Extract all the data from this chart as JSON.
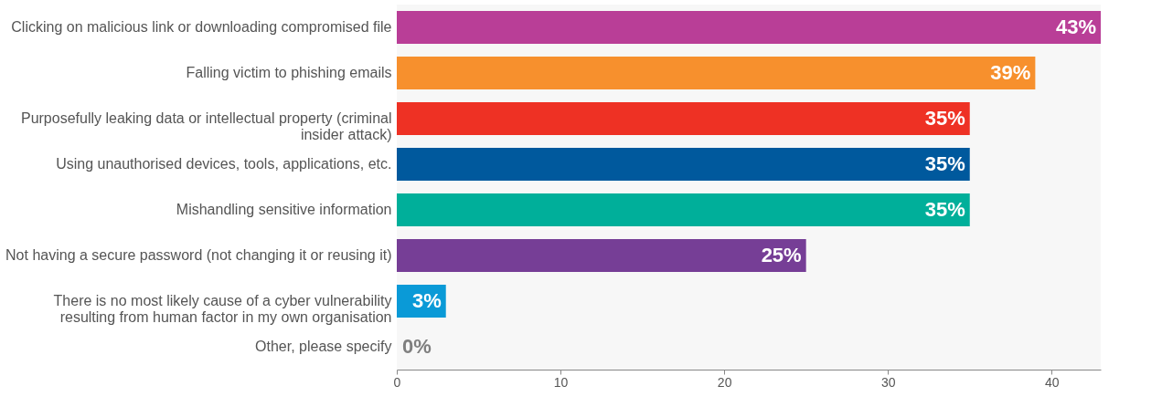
{
  "chart_data": {
    "type": "bar",
    "orientation": "horizontal",
    "categories": [
      "Clicking on malicious link or downloading compromised file",
      "Falling victim to phishing emails",
      "Purposefully leaking data or intellectual property (criminal insider attack)",
      "Using unauthorised devices, tools, applications, etc.",
      "Mishandling sensitive information",
      "Not having a secure password (not changing it or reusing it)",
      "There is no most likely cause of a cyber vulnerability resulting from human factor in my own organisation",
      "Other, please specify"
    ],
    "values": [
      43,
      39,
      35,
      35,
      35,
      25,
      3,
      0
    ],
    "colors": [
      "#b93e97",
      "#f7902d",
      "#ee3124",
      "#00599d",
      "#00af9a",
      "#763e96",
      "#0a9ad7",
      "#7f7f7f"
    ],
    "value_labels": [
      "43%",
      "39%",
      "35%",
      "35%",
      "35%",
      "25%",
      "3%",
      "0%"
    ],
    "xlim": [
      0,
      43
    ],
    "xticks": [
      0,
      10,
      20,
      30,
      40
    ],
    "grid": false
  }
}
